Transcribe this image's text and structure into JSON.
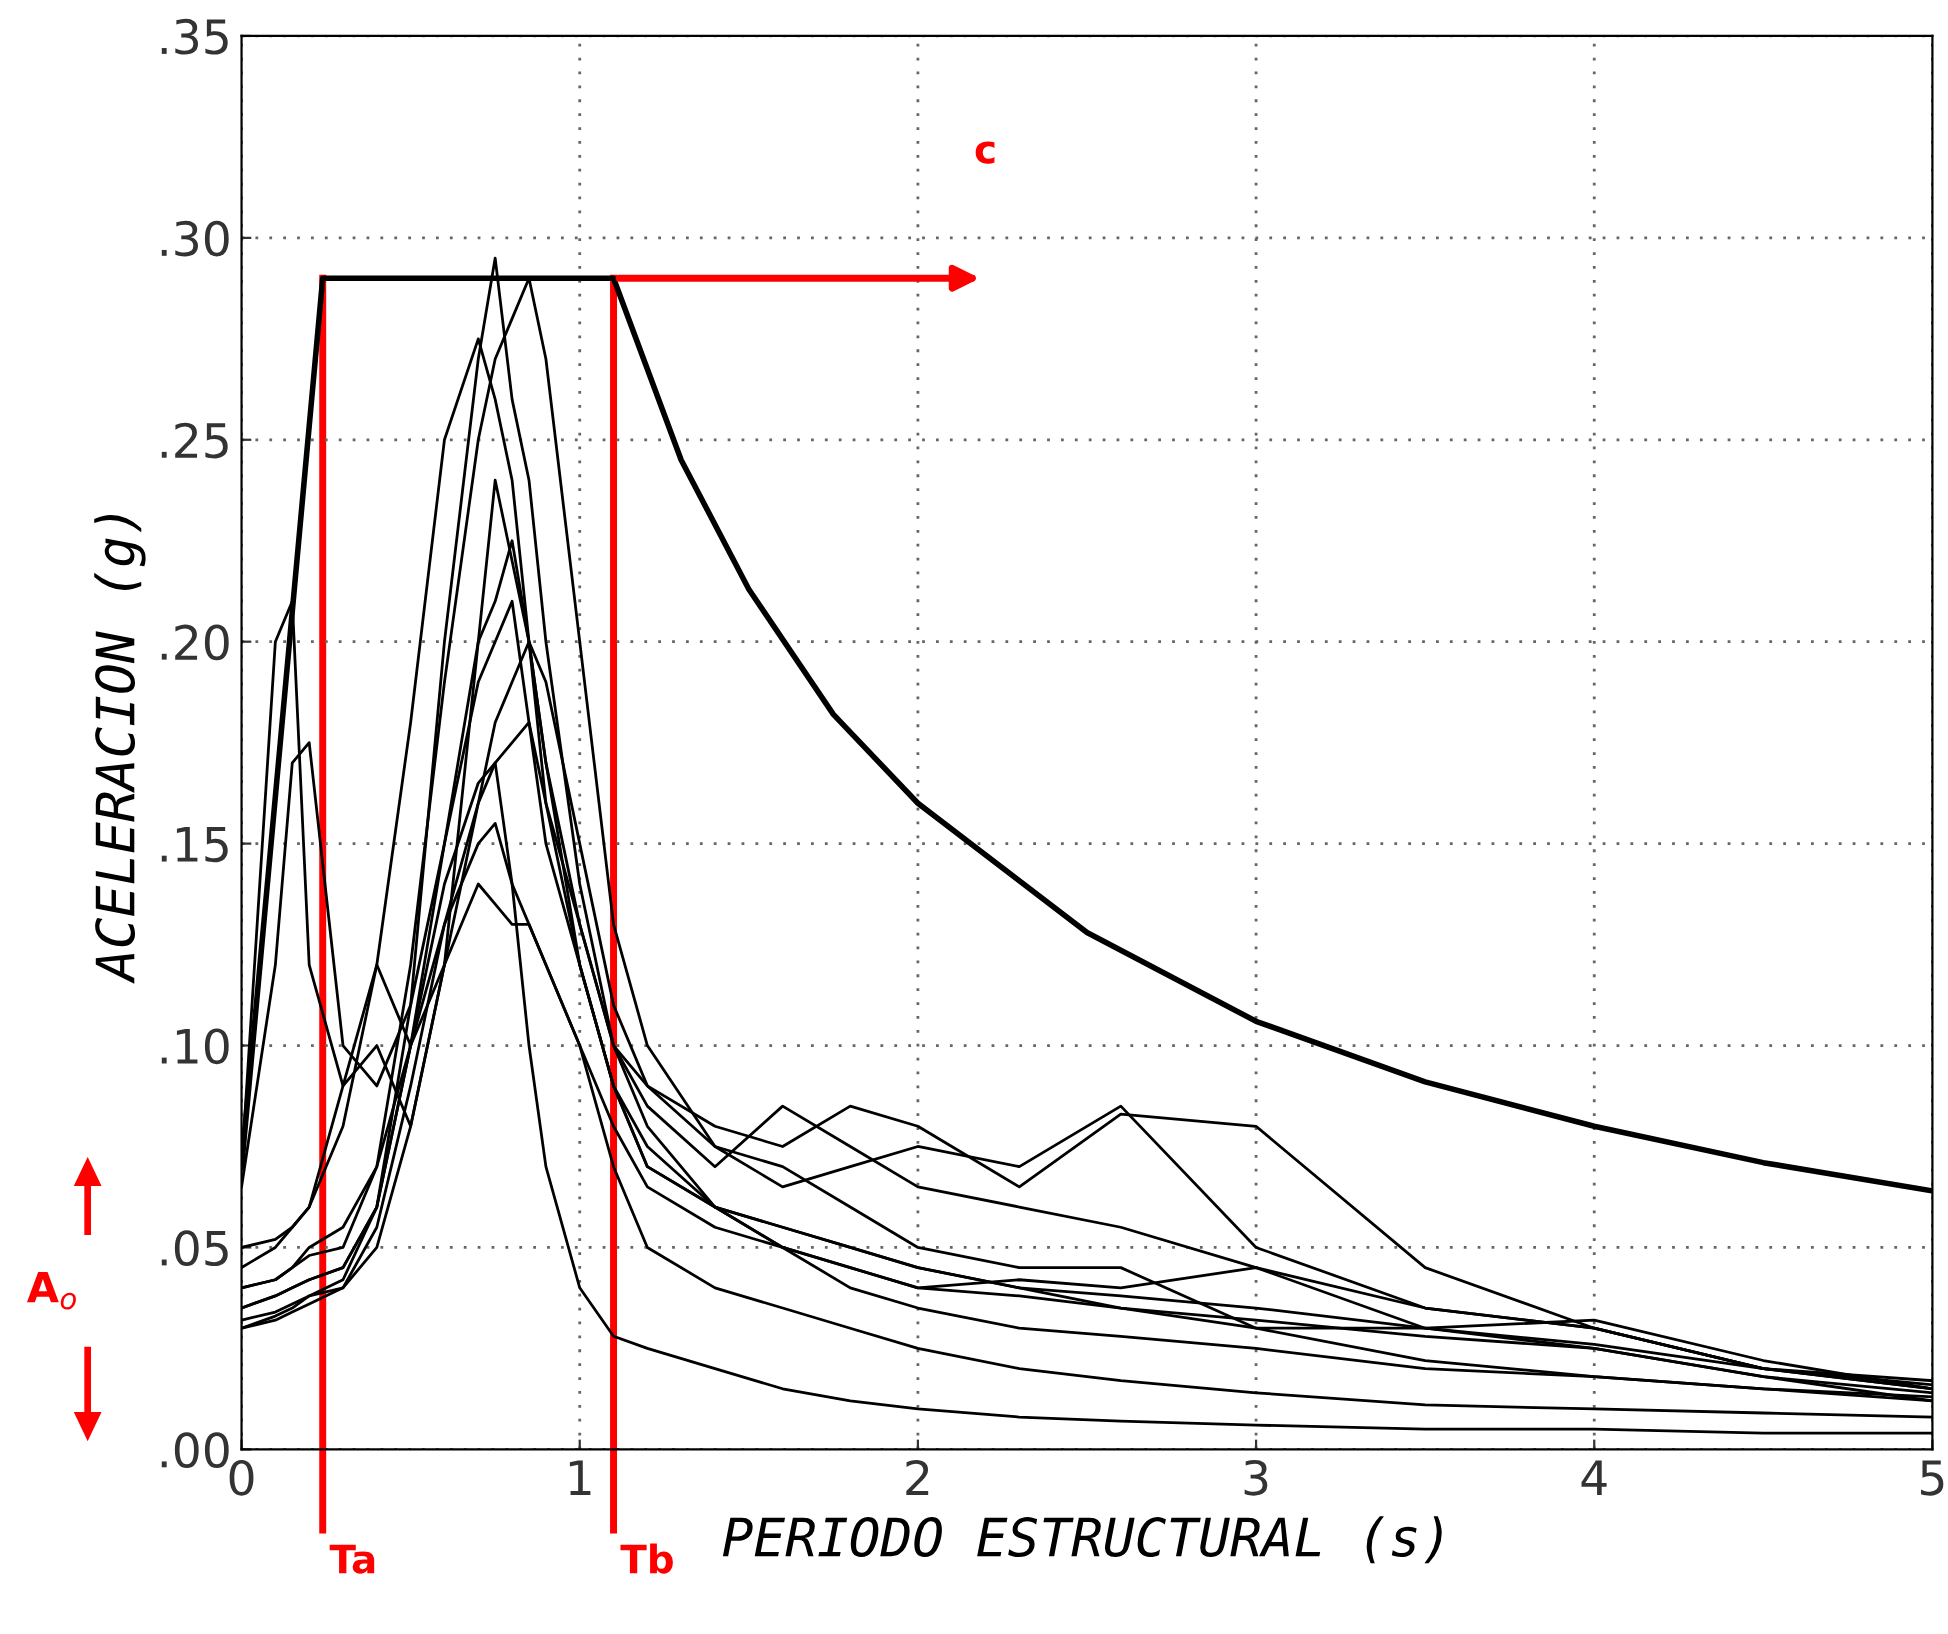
{
  "chart_data": {
    "type": "line",
    "xlabel": "PERIODO ESTRUCTURAL (s)",
    "ylabel": "ACELERACION (g)",
    "x": [
      0,
      0.1,
      0.15,
      0.2,
      0.3,
      0.4,
      0.5,
      0.6,
      0.7,
      0.75,
      0.8,
      0.85,
      0.9,
      1.0,
      1.1,
      1.2,
      1.4,
      1.6,
      1.8,
      2.0,
      2.3,
      2.6,
      3.0,
      3.5,
      4.0,
      4.5,
      5.0
    ],
    "xlim": [
      0,
      5
    ],
    "xticks": [
      0,
      1,
      2,
      3,
      4,
      5
    ],
    "ylim": [
      0,
      0.35
    ],
    "yticks": [
      {
        "value": 0,
        "label": ".00"
      },
      {
        "value": 0.05,
        "label": ".05"
      },
      {
        "value": 0.1,
        "label": ".10"
      },
      {
        "value": 0.15,
        "label": ".15"
      },
      {
        "value": 0.2,
        "label": ".20"
      },
      {
        "value": 0.25,
        "label": ".25"
      },
      {
        "value": 0.3,
        "label": ".30"
      },
      {
        "value": 0.35,
        "label": ".35"
      }
    ],
    "grid": true,
    "marker": "none",
    "line_style": "solid",
    "series": [
      {
        "color": "#000000",
        "values": [
          0.035,
          0.038,
          0.04,
          0.042,
          0.045,
          0.06,
          0.11,
          0.2,
          0.27,
          0.295,
          0.26,
          0.24,
          0.2,
          0.14,
          0.1,
          0.08,
          0.06,
          0.05,
          0.04,
          0.035,
          0.03,
          0.028,
          0.025,
          0.02,
          0.018,
          0.015,
          0.013
        ]
      },
      {
        "color": "#000000",
        "values": [
          0.04,
          0.042,
          0.045,
          0.048,
          0.05,
          0.07,
          0.12,
          0.19,
          0.25,
          0.27,
          0.28,
          0.29,
          0.27,
          0.2,
          0.13,
          0.1,
          0.075,
          0.065,
          0.07,
          0.075,
          0.07,
          0.085,
          0.05,
          0.035,
          0.03,
          0.02,
          0.015
        ]
      },
      {
        "color": "#000000",
        "values": [
          0.045,
          0.05,
          0.055,
          0.06,
          0.08,
          0.12,
          0.18,
          0.25,
          0.275,
          0.26,
          0.24,
          0.2,
          0.17,
          0.13,
          0.1,
          0.085,
          0.07,
          0.085,
          0.075,
          0.065,
          0.06,
          0.055,
          0.045,
          0.03,
          0.025,
          0.018,
          0.014
        ]
      },
      {
        "color": "#000000",
        "values": [
          0.07,
          0.2,
          0.21,
          0.12,
          0.09,
          0.1,
          0.08,
          0.12,
          0.2,
          0.24,
          0.22,
          0.2,
          0.17,
          0.12,
          0.09,
          0.07,
          0.06,
          0.055,
          0.05,
          0.045,
          0.04,
          0.035,
          0.03,
          0.03,
          0.032,
          0.022,
          0.015
        ]
      },
      {
        "color": "#000000",
        "values": [
          0.065,
          0.12,
          0.17,
          0.175,
          0.1,
          0.09,
          0.11,
          0.15,
          0.19,
          0.2,
          0.21,
          0.18,
          0.15,
          0.12,
          0.09,
          0.075,
          0.06,
          0.05,
          0.045,
          0.04,
          0.038,
          0.035,
          0.032,
          0.028,
          0.025,
          0.018,
          0.012
        ]
      },
      {
        "color": "#000000",
        "values": [
          0.03,
          0.033,
          0.035,
          0.038,
          0.042,
          0.06,
          0.1,
          0.15,
          0.2,
          0.21,
          0.225,
          0.2,
          0.16,
          0.13,
          0.1,
          0.09,
          0.08,
          0.075,
          0.085,
          0.08,
          0.065,
          0.083,
          0.08,
          0.045,
          0.03,
          0.02,
          0.016
        ]
      },
      {
        "color": "#000000",
        "values": [
          0.035,
          0.038,
          0.04,
          0.042,
          0.045,
          0.06,
          0.1,
          0.14,
          0.165,
          0.17,
          0.14,
          0.1,
          0.07,
          0.04,
          0.028,
          0.025,
          0.02,
          0.015,
          0.012,
          0.01,
          0.008,
          0.007,
          0.006,
          0.005,
          0.005,
          0.004,
          0.004
        ]
      },
      {
        "color": "#000000",
        "values": [
          0.032,
          0.034,
          0.036,
          0.038,
          0.04,
          0.055,
          0.09,
          0.13,
          0.15,
          0.155,
          0.14,
          0.13,
          0.12,
          0.1,
          0.07,
          0.05,
          0.04,
          0.035,
          0.03,
          0.025,
          0.02,
          0.017,
          0.014,
          0.011,
          0.01,
          0.009,
          0.008
        ]
      },
      {
        "color": "#000000",
        "values": [
          0.04,
          0.042,
          0.045,
          0.05,
          0.055,
          0.07,
          0.1,
          0.12,
          0.14,
          0.135,
          0.13,
          0.13,
          0.12,
          0.1,
          0.08,
          0.065,
          0.055,
          0.05,
          0.045,
          0.04,
          0.042,
          0.04,
          0.045,
          0.035,
          0.03,
          0.02,
          0.015
        ]
      },
      {
        "color": "#000000",
        "values": [
          0.03,
          0.032,
          0.034,
          0.036,
          0.04,
          0.05,
          0.08,
          0.12,
          0.16,
          0.17,
          0.175,
          0.18,
          0.16,
          0.12,
          0.09,
          0.07,
          0.06,
          0.055,
          0.05,
          0.045,
          0.04,
          0.038,
          0.035,
          0.03,
          0.026,
          0.02,
          0.017
        ]
      },
      {
        "color": "#000000",
        "values": [
          0.05,
          0.052,
          0.055,
          0.06,
          0.09,
          0.12,
          0.1,
          0.13,
          0.16,
          0.18,
          0.19,
          0.2,
          0.19,
          0.15,
          0.11,
          0.09,
          0.075,
          0.07,
          0.06,
          0.05,
          0.045,
          0.045,
          0.03,
          0.022,
          0.018,
          0.015,
          0.012
        ]
      },
      {
        "color": "#000000",
        "x": [
          0,
          0.24,
          1.1,
          1.3,
          1.5,
          1.75,
          2.0,
          2.5,
          3.0,
          3.5,
          4.0,
          4.5,
          5.0
        ],
        "values": [
          0.07,
          0.29,
          0.29,
          0.245,
          0.213,
          0.182,
          0.16,
          0.128,
          0.106,
          0.091,
          0.08,
          0.071,
          0.064
        ]
      }
    ],
    "ref_lines": [
      {
        "axis": "x",
        "value": 0.24,
        "label": "Ta",
        "color": "#ff0000"
      },
      {
        "axis": "x",
        "value": 1.1,
        "label": "Tb",
        "color": "#ff0000"
      }
    ],
    "annotations": [
      "c",
      "A$_{o}$"
    ]
  }
}
